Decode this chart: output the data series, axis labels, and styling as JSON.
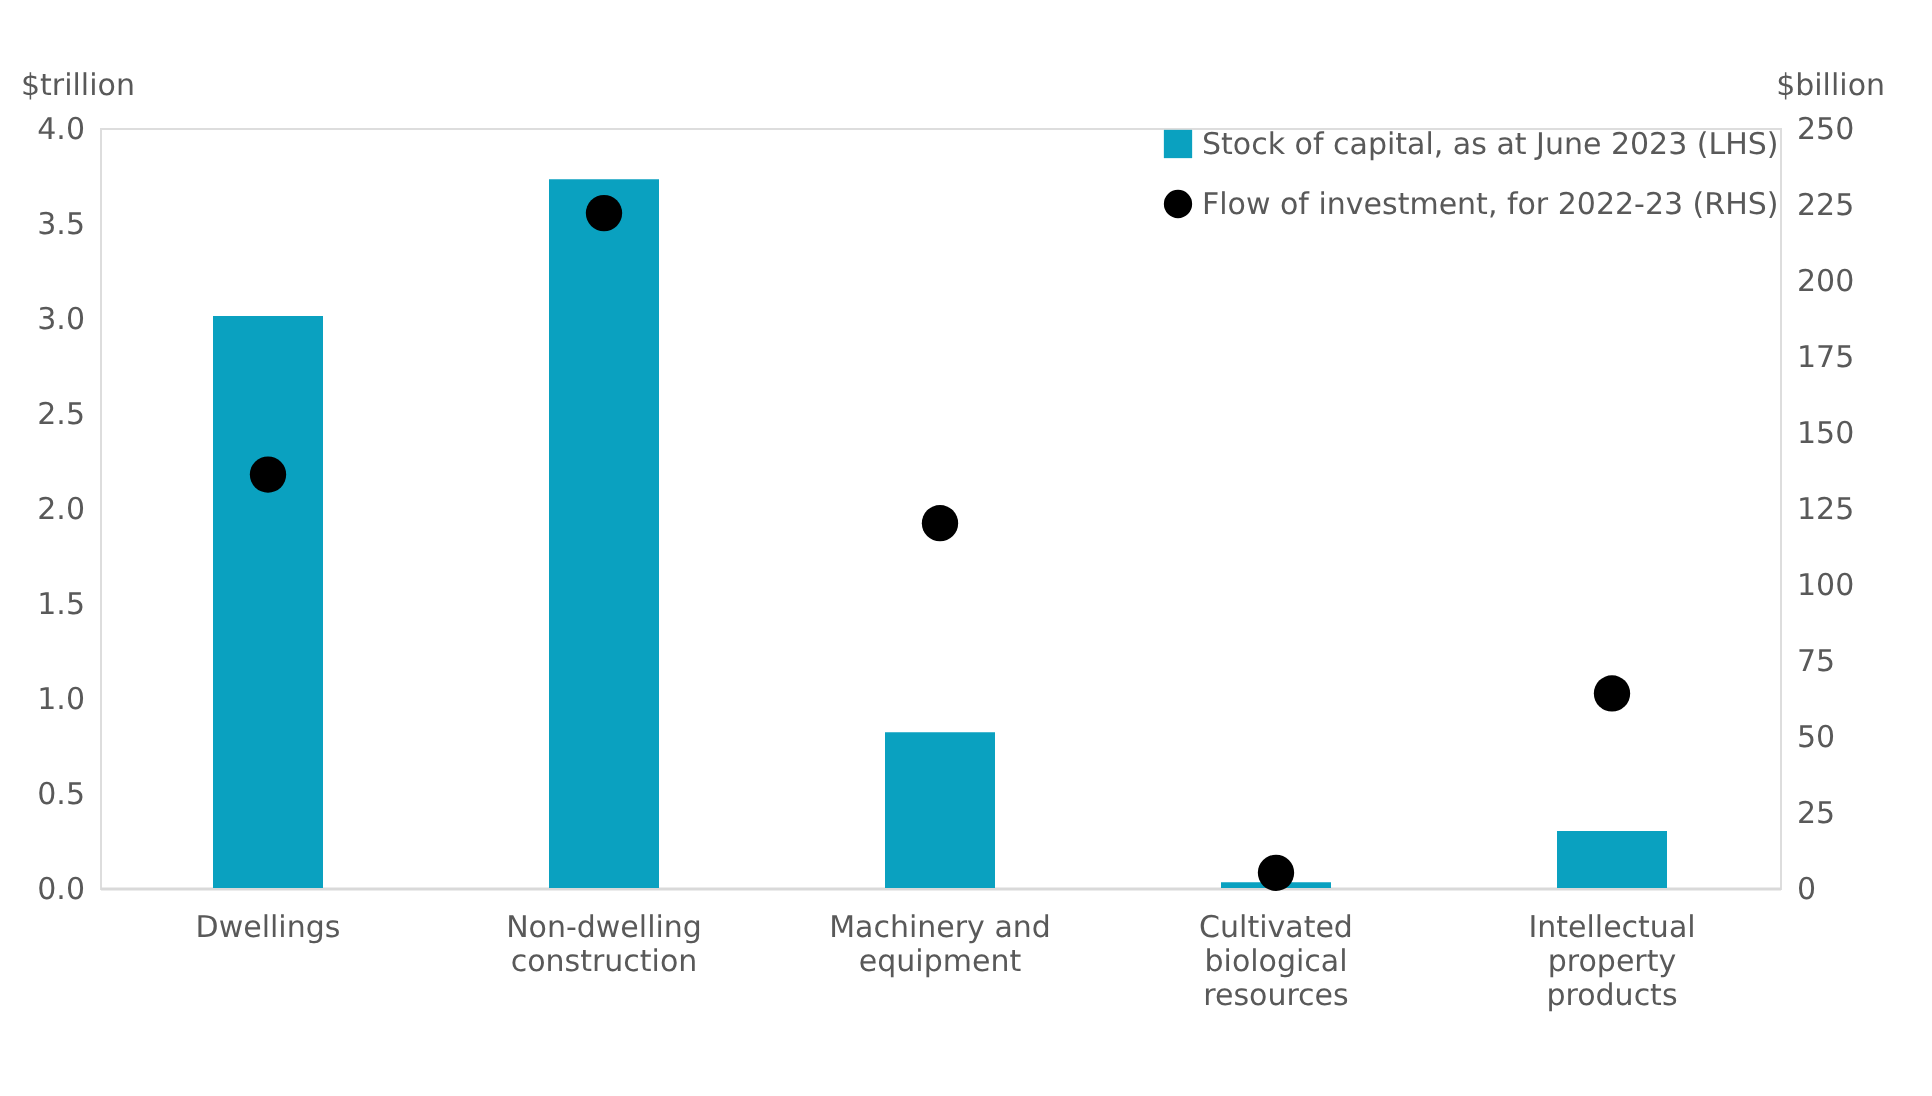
{
  "chart_data": {
    "type": "bar",
    "categories": [
      "Dwellings",
      "Non-dwelling construction",
      "Machinery and equipment",
      "Cultivated biological resources",
      "Intellectual property products"
    ],
    "series": [
      {
        "name": "Stock of capital, as at June 2023 (LHS)",
        "color": "#0aa1c0",
        "values": [
          3.01,
          3.73,
          0.82,
          0.03,
          0.3
        ]
      },
      {
        "name": "Flow of investment, for 2022-23 (RHS)",
        "type": "scatter",
        "axis": "y2",
        "color": "#000000",
        "values": [
          136,
          222,
          120,
          5,
          64
        ]
      }
    ],
    "ylabel": "$trillion",
    "y2label": "$billion",
    "ylim": [
      0,
      4
    ],
    "yticks": [
      {
        "value": 0,
        "label": "0.0"
      },
      0.5,
      {
        "value": 1,
        "label": "1.0"
      },
      1.5,
      {
        "value": 2,
        "label": "2.0"
      },
      2.5,
      {
        "value": 3,
        "label": "3.0"
      },
      3.5,
      {
        "value": 4,
        "label": "4.0"
      }
    ],
    "y2lim": [
      0,
      250
    ],
    "y2ticks": [
      0,
      25,
      50,
      75,
      100,
      125,
      150,
      175,
      200,
      225,
      250
    ],
    "legend": "top right",
    "marker": "circle",
    "grid": false
  }
}
